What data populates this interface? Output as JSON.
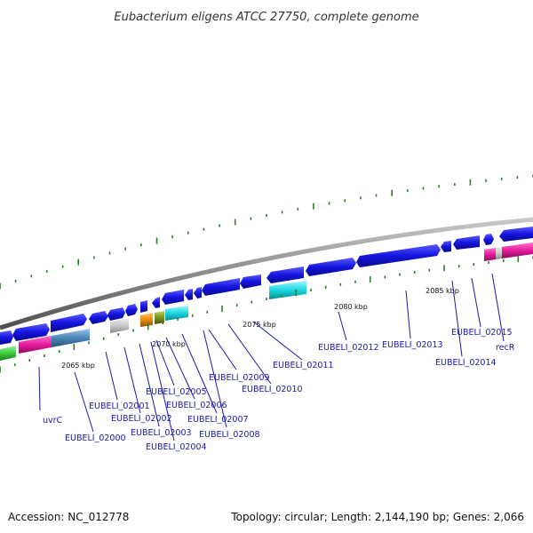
{
  "title": "Eubacterium eligens ATCC 27750, complete genome",
  "footer": {
    "accession": "Accession: NC_012778",
    "summary": "Topology: circular; Length: 2,144,190 bp; Genes: 2,066"
  },
  "colors": {
    "gene_blue": "#1414e0",
    "backbone": "#8c8c8c",
    "tick_green": "#2a7d2a",
    "label_blue": "#1a1aa8",
    "magenta": "#e61a9c",
    "cyan": "#19d6e0",
    "green": "#3ccf3c",
    "steelblue": "#4a86b8",
    "orange": "#e88a0a",
    "olive": "#7c8f1c",
    "gray": "#c9c9c9"
  },
  "scale_labels": [
    "2065 kbp",
    "2070 kbp",
    "2075 kbp",
    "2080 kbp",
    "2085 kbp"
  ],
  "gene_labels": [
    "uvrC",
    "EUBELI_02000",
    "EUBELI_02001",
    "EUBELI_02002",
    "EUBELI_02003",
    "EUBELI_02004",
    "EUBELI_02005",
    "EUBELI_02006",
    "EUBELI_02007",
    "EUBELI_02008",
    "EUBELI_02009",
    "EUBELI_02010",
    "EUBELI_02011",
    "EUBELI_02012",
    "EUBELI_02013",
    "EUBELI_02014",
    "EUBELI_02015",
    "recR"
  ]
}
